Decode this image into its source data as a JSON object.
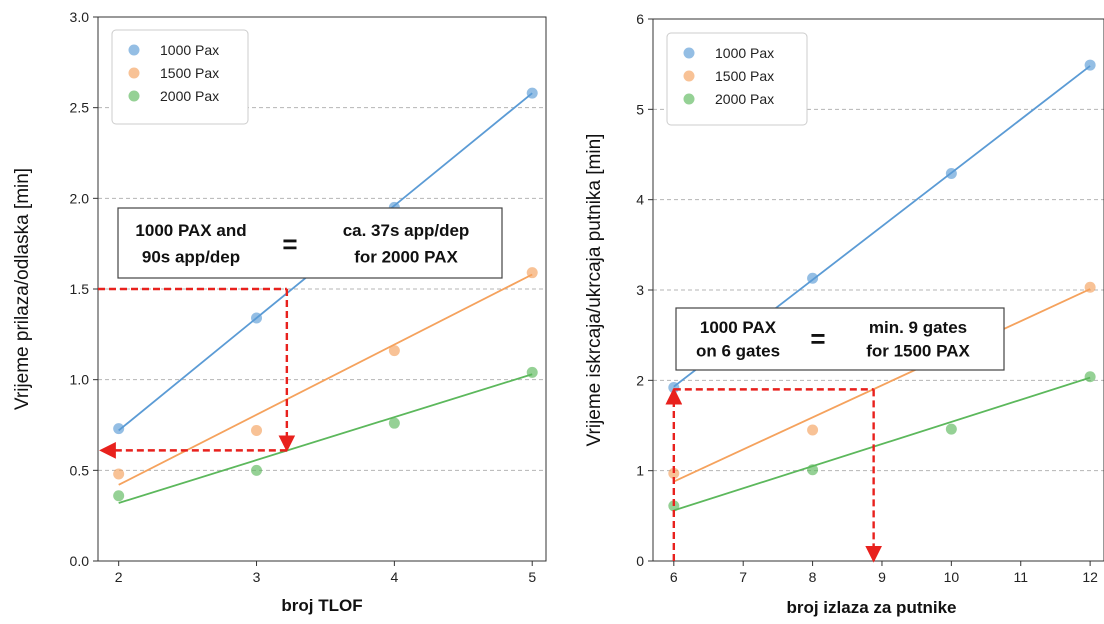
{
  "colors": {
    "1000 Pax": "#5b9bd5",
    "1500 Pax": "#f5a25d",
    "2000 Pax": "#5cb85c",
    "arrow": "#e8211d",
    "grid": "#b5b5b5"
  },
  "chart_data": [
    {
      "type": "scatter",
      "xlabel": "broj TLOF",
      "ylabel": "Vrijeme prilaza/odlaska  [min]",
      "xlim": [
        1.85,
        5.1
      ],
      "ylim": [
        0.0,
        3.0
      ],
      "xticks": [
        2,
        3,
        4,
        5
      ],
      "xtick_labels": [
        "2",
        "3",
        "4",
        "5"
      ],
      "yticks": [
        0.0,
        0.5,
        1.0,
        1.5,
        2.0,
        2.5,
        3.0
      ],
      "ytick_labels": [
        "0.0",
        "0.5",
        "1.0",
        "1.5",
        "2.0",
        "2.5",
        "3.0"
      ],
      "grid": "horizontal dashed",
      "legend_position": "top-left",
      "series": [
        {
          "name": "1000 Pax",
          "x": [
            2,
            3,
            4,
            5
          ],
          "y": [
            0.73,
            1.34,
            1.95,
            2.58
          ],
          "fit": [
            [
              2,
              0.72
            ],
            [
              5,
              2.58
            ]
          ]
        },
        {
          "name": "1500 Pax",
          "x": [
            2,
            3,
            4,
            5
          ],
          "y": [
            0.48,
            0.72,
            1.16,
            1.59
          ],
          "fit": [
            [
              2,
              0.42
            ],
            [
              5,
              1.58
            ]
          ]
        },
        {
          "name": "2000 Pax",
          "x": [
            2,
            3,
            4,
            5
          ],
          "y": [
            0.36,
            0.5,
            0.76,
            1.04
          ],
          "fit": [
            [
              2,
              0.32
            ],
            [
              5,
              1.03
            ]
          ]
        }
      ],
      "arrows": [
        {
          "from": [
            1.85,
            1.5
          ],
          "to": [
            3.22,
            1.5
          ],
          "head": false
        },
        {
          "from": [
            3.22,
            1.5
          ],
          "to": [
            3.22,
            0.61
          ],
          "head": true
        },
        {
          "from": [
            3.22,
            0.61
          ],
          "to": [
            1.87,
            0.61
          ],
          "head": true
        }
      ],
      "annotation": {
        "left_lines": [
          "1000 PAX and",
          "90s app/dep"
        ],
        "equals": "=",
        "right_lines": [
          "ca. 37s app/dep",
          "for 2000 PAX"
        ]
      }
    },
    {
      "type": "scatter",
      "xlabel": "broj izlaza za putnike",
      "ylabel": "Vrijeme iskrcaja/ukrcaja putnika  [min]",
      "xlim": [
        5.7,
        12.2
      ],
      "ylim": [
        0,
        6
      ],
      "xticks": [
        6,
        7,
        8,
        9,
        10,
        11,
        12
      ],
      "xtick_labels": [
        "6",
        "7",
        "8",
        "9",
        "10",
        "11",
        "12"
      ],
      "yticks": [
        0,
        1,
        2,
        3,
        4,
        5,
        6
      ],
      "ytick_labels": [
        "0",
        "1",
        "2",
        "3",
        "4",
        "5",
        "6"
      ],
      "grid": "horizontal dashed",
      "legend_position": "top-left",
      "series": [
        {
          "name": "1000 Pax",
          "x": [
            6,
            8,
            10,
            12
          ],
          "y": [
            1.92,
            3.13,
            4.29,
            5.49
          ],
          "fit": [
            [
              6,
              1.93
            ],
            [
              12,
              5.48
            ]
          ]
        },
        {
          "name": "1500 Pax",
          "x": [
            6,
            8,
            10,
            12
          ],
          "y": [
            0.97,
            1.45,
            2.25,
            3.03
          ],
          "fit": [
            [
              6,
              0.88
            ],
            [
              12,
              3.01
            ]
          ]
        },
        {
          "name": "2000 Pax",
          "x": [
            6,
            8,
            10,
            12
          ],
          "y": [
            0.61,
            1.01,
            1.46,
            2.04
          ],
          "fit": [
            [
              6,
              0.56
            ],
            [
              12,
              2.03
            ]
          ]
        }
      ],
      "arrows": [
        {
          "from": [
            6.0,
            0.0
          ],
          "to": [
            6.0,
            1.9
          ],
          "head": true
        },
        {
          "from": [
            6.0,
            1.9
          ],
          "to": [
            8.88,
            1.9
          ],
          "head": false
        },
        {
          "from": [
            8.88,
            1.9
          ],
          "to": [
            8.88,
            0.0
          ],
          "head": true
        }
      ],
      "annotation": {
        "left_lines": [
          "1000 PAX",
          "on 6 gates"
        ],
        "equals": "=",
        "right_lines": [
          "min. 9 gates",
          "for 1500 PAX"
        ]
      }
    }
  ]
}
